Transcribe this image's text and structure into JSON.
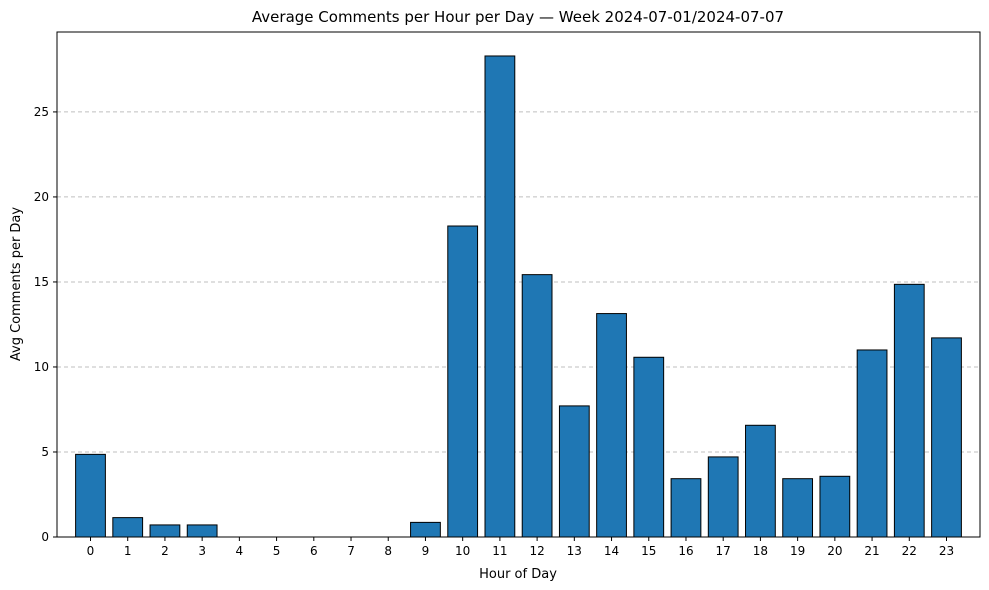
{
  "chart_data": {
    "type": "bar",
    "title": "Average Comments per Hour per Day — Week 2024-07-01/2024-07-07",
    "xlabel": "Hour of Day",
    "ylabel": "Avg Comments per Day",
    "categories": [
      "0",
      "1",
      "2",
      "3",
      "4",
      "5",
      "6",
      "7",
      "8",
      "9",
      "10",
      "11",
      "12",
      "13",
      "14",
      "15",
      "16",
      "17",
      "18",
      "19",
      "20",
      "21",
      "22",
      "23"
    ],
    "values": [
      4.86,
      1.14,
      0.71,
      0.71,
      0,
      0,
      0,
      0,
      0,
      0.86,
      18.29,
      28.29,
      15.43,
      7.71,
      13.14,
      10.57,
      3.43,
      4.71,
      6.57,
      3.43,
      3.57,
      11.0,
      14.86,
      11.71
    ],
    "yticks": [
      0,
      5,
      10,
      15,
      20,
      25
    ],
    "ylim": [
      0,
      29.7
    ],
    "grid": "y-dashed",
    "bar_color": "#1f77b4",
    "edge_color": "#000000"
  }
}
